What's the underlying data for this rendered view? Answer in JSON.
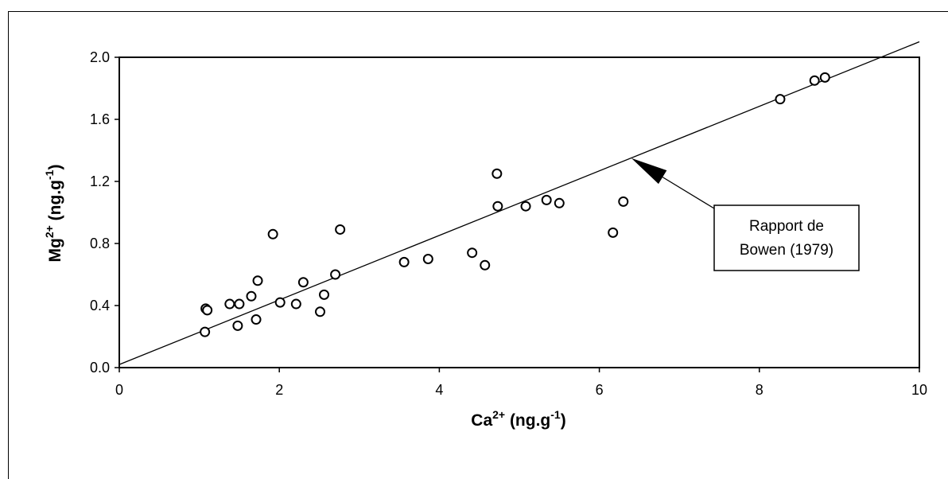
{
  "chart_data": {
    "type": "scatter",
    "title": "",
    "xlabel": "Ca2+ (ng.g-1)",
    "ylabel": "Mg2+ (ng.g-1)",
    "xlabel_parts": {
      "base": "Ca",
      "sup": "2+",
      "unit_pre": " (ng.g",
      "unit_sup": "-1",
      "unit_post": ")"
    },
    "ylabel_parts": {
      "base": "Mg",
      "sup": "2+",
      "unit_pre": " (ng.g",
      "unit_sup": "-1",
      "unit_post": ")"
    },
    "xlim": [
      0,
      10
    ],
    "ylim": [
      0,
      2.0
    ],
    "xticks": [
      0,
      2,
      4,
      6,
      8,
      10
    ],
    "yticks": [
      0.0,
      0.4,
      0.8,
      1.2,
      1.6,
      2.0
    ],
    "xtick_labels": [
      "0",
      "2",
      "4",
      "6",
      "8",
      "10"
    ],
    "ytick_labels": [
      "0.0",
      "0.4",
      "0.8",
      "1.2",
      "1.6",
      "2.0"
    ],
    "grid": false,
    "series": [
      {
        "marker": "open-circle",
        "x": [
          1.07,
          1.08,
          1.1,
          1.38,
          1.48,
          1.5,
          1.65,
          1.71,
          1.73,
          1.92,
          2.01,
          2.21,
          2.3,
          2.51,
          2.56,
          2.7,
          2.76,
          3.56,
          3.86,
          4.41,
          4.57,
          4.72,
          4.73,
          5.08,
          5.34,
          5.5,
          6.17,
          6.3,
          8.26,
          8.69,
          8.82
        ],
        "y": [
          0.23,
          0.38,
          0.37,
          0.41,
          0.27,
          0.41,
          0.46,
          0.31,
          0.56,
          0.86,
          0.42,
          0.41,
          0.55,
          0.36,
          0.47,
          0.6,
          0.89,
          0.68,
          0.7,
          0.74,
          0.66,
          1.25,
          1.04,
          1.04,
          1.08,
          1.06,
          0.87,
          1.07,
          1.73,
          1.85,
          1.87
        ]
      }
    ],
    "reference_line": {
      "x": [
        0,
        10
      ],
      "y": [
        0.02,
        2.1
      ]
    },
    "annotation": {
      "lines": [
        "Rapport de",
        "Bowen (1979)"
      ],
      "arrow_target": {
        "x": 6.4,
        "y": 1.35
      }
    }
  },
  "colors": {
    "ink": "#000000",
    "background": "#ffffff"
  }
}
